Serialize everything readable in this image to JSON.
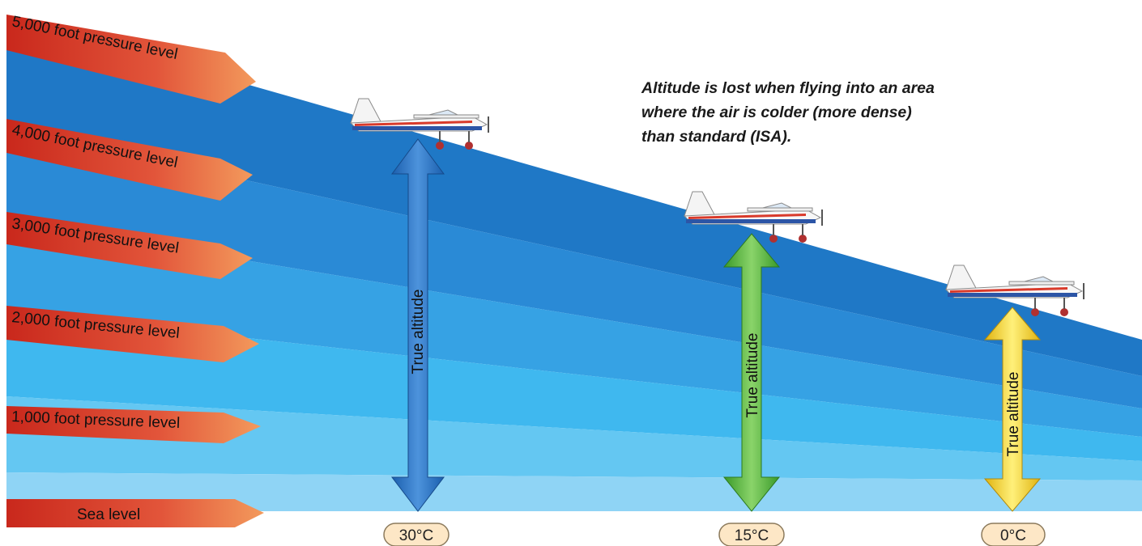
{
  "pressure_levels": [
    {
      "label": "5,000 foot pressure level"
    },
    {
      "label": "4,000 foot pressure level"
    },
    {
      "label": "3,000 foot pressure level"
    },
    {
      "label": "2,000 foot pressure level"
    },
    {
      "label": "1,000 foot pressure level"
    },
    {
      "label": "Sea level"
    }
  ],
  "note": "Altitude is lost when flying into an area where the air is colder (more dense) than standard (ISA).",
  "columns": [
    {
      "temperature": "30°C",
      "arrow_label": "True altitude",
      "arrow_color": "#2a6fc2"
    },
    {
      "temperature": "15°C",
      "arrow_label": "True altitude",
      "arrow_color": "#52b43a"
    },
    {
      "temperature": "0°C",
      "arrow_label": "True altitude",
      "arrow_color": "#f1cf1e"
    }
  ],
  "colors": {
    "band_top": "#1f78c6",
    "band_bottom": "#8fd4f5",
    "label_arrow": "#d8442a"
  }
}
